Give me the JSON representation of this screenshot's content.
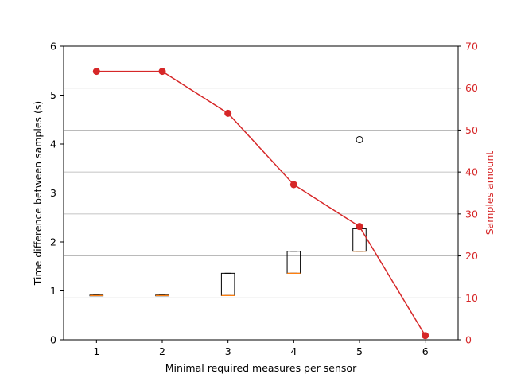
{
  "chart_data": {
    "type": "box+line",
    "xlabel": "Minimal required measures per sensor",
    "ylabel_left": "Time difference between samples (s)",
    "ylabel_right": "Samples amount",
    "x_ticks": [
      "1",
      "2",
      "3",
      "4",
      "5",
      "6"
    ],
    "y_left_ticks": [
      "0",
      "1",
      "2",
      "3",
      "4",
      "5",
      "6"
    ],
    "y_right_ticks": [
      "0",
      "10",
      "20",
      "30",
      "40",
      "50",
      "60",
      "70"
    ],
    "ylim_left": [
      0,
      6
    ],
    "ylim_right": [
      0,
      70
    ],
    "xlim": [
      0.5,
      6.5
    ],
    "grid": "horizontal, right axis",
    "box_series": [
      {
        "x": 1,
        "q1": 0.905,
        "median": 0.905,
        "q3": 0.915,
        "whisker_low": 0.905,
        "whisker_high": 0.915,
        "outliers": []
      },
      {
        "x": 2,
        "q1": 0.905,
        "median": 0.905,
        "q3": 0.915,
        "whisker_low": 0.905,
        "whisker_high": 0.915,
        "outliers": []
      },
      {
        "x": 3,
        "q1": 0.905,
        "median": 0.905,
        "q3": 1.36,
        "whisker_low": 0.905,
        "whisker_high": 1.36,
        "outliers": []
      },
      {
        "x": 4,
        "q1": 1.36,
        "median": 1.36,
        "q3": 1.81,
        "whisker_low": 1.36,
        "whisker_high": 1.81,
        "outliers": []
      },
      {
        "x": 5,
        "q1": 1.81,
        "median": 1.81,
        "q3": 2.27,
        "whisker_low": 1.81,
        "whisker_high": 2.27,
        "outliers": [
          4.09
        ]
      }
    ],
    "line_series": {
      "x": [
        1,
        2,
        3,
        4,
        5,
        6
      ],
      "values": [
        64,
        64,
        54,
        37,
        27,
        1
      ]
    },
    "colors": {
      "line": "#d62728",
      "median": "#ff7f0e",
      "box": "#000000",
      "grid": "#b0b0b0",
      "right_axis": "#d62728"
    }
  }
}
